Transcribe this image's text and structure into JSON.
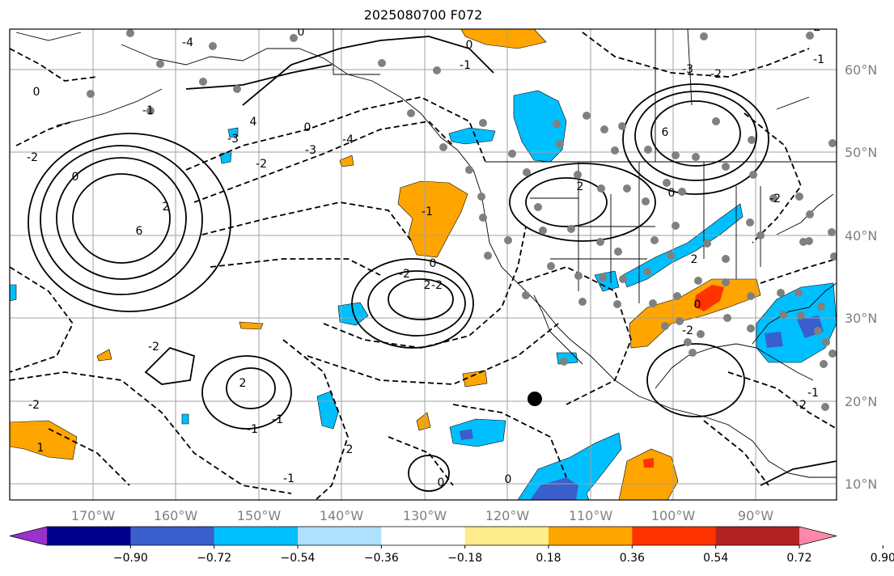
{
  "title": "2025080700 F072",
  "map": {
    "lon_labels": [
      "170°W",
      "160°W",
      "150°W",
      "140°W",
      "130°W",
      "120°W",
      "110°W",
      "100°W",
      "90°W"
    ],
    "lat_labels": [
      "60°N",
      "50°N",
      "40°N",
      "30°N",
      "20°N",
      "10°N"
    ],
    "contour_labels": [
      "0",
      "-4",
      "0",
      "4",
      "-3",
      "-1",
      "0",
      "-2",
      "-3",
      "-4",
      "-2",
      "0",
      "6",
      "2",
      "2",
      "-2",
      "-1",
      "0",
      "-2",
      "2",
      "-1",
      "-2",
      "1",
      "6",
      "2",
      "0",
      "-3",
      "-2",
      "-2",
      "0",
      "2",
      "-2",
      "-2",
      "-1",
      "2",
      "-1",
      "-1",
      "0",
      "-1",
      "2",
      "0",
      "-2",
      "0",
      "-1"
    ]
  },
  "colorbar": {
    "ticks": [
      "−0.90",
      "−0.72",
      "−0.54",
      "−0.36",
      "−0.18",
      "0.18",
      "0.36",
      "0.54",
      "0.72",
      "0.90"
    ],
    "colors": [
      "#9932cc",
      "#00008b",
      "#3a5fcd",
      "#00bfff",
      "#b0e0ff",
      "#ffffff",
      "#ffec8b",
      "#ffa500",
      "#ff3300",
      "#b22222",
      "#ff88aa"
    ]
  }
}
